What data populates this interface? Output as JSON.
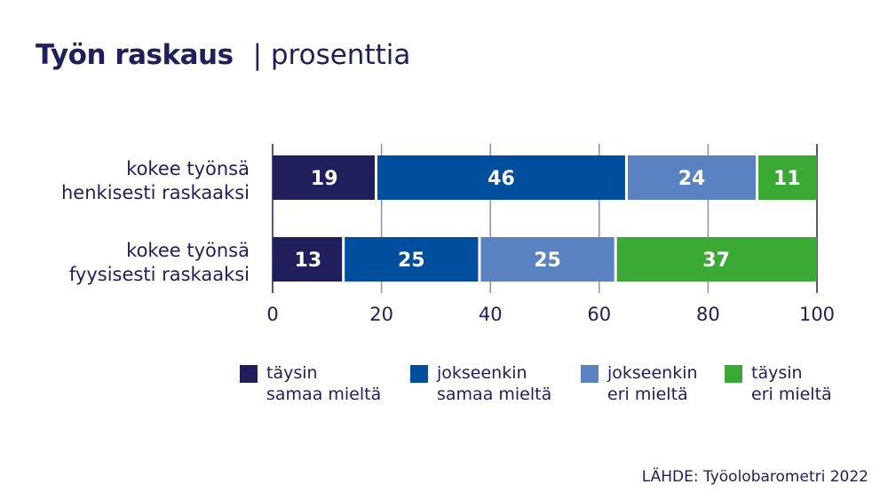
{
  "title": {
    "main": "Työn raskaus",
    "separator": "|",
    "unit": "prosenttia"
  },
  "source": "LÄHDE: Työolobarometri 2022",
  "chart_data": {
    "type": "bar",
    "orientation": "horizontal",
    "stacked": true,
    "title": "Työn raskaus | prosenttia",
    "categories": [
      "kokee työnsä henkisesti raskaaksi",
      "kokee työnsä fyysisesti raskaaksi"
    ],
    "category_lines": [
      [
        "kokee työnsä",
        "henkisesti raskaaksi"
      ],
      [
        "kokee työnsä",
        "fyysisesti raskaaksi"
      ]
    ],
    "series": [
      {
        "name": "täysin samaa mieltä",
        "lines": [
          "täysin",
          "samaa mieltä"
        ],
        "color": "#201f5b",
        "values": [
          19,
          13
        ]
      },
      {
        "name": "jokseenkin samaa mieltä",
        "lines": [
          "jokseenkin",
          "samaa mieltä"
        ],
        "color": "#004f9e",
        "values": [
          46,
          25
        ]
      },
      {
        "name": "jokseenkin eri mieltä",
        "lines": [
          "jokseenkin",
          "eri mieltä"
        ],
        "color": "#5a82c3",
        "values": [
          24,
          25
        ]
      },
      {
        "name": "täysin eri mieltä",
        "lines": [
          "täysin",
          "eri mieltä"
        ],
        "color": "#3aaa35",
        "values": [
          11,
          37
        ]
      }
    ],
    "xlim": [
      0,
      100
    ],
    "xticks": [
      0,
      20,
      40,
      60,
      80,
      100
    ],
    "grid": true,
    "legend": "bottom",
    "xlabel": "",
    "ylabel": ""
  }
}
